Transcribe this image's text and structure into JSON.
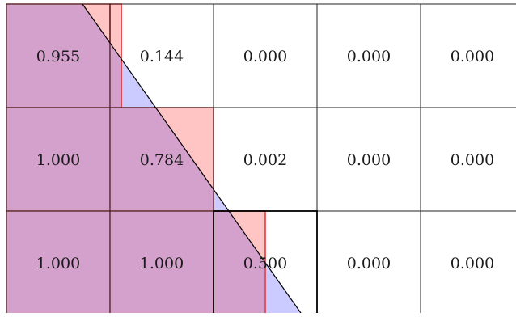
{
  "grid": {
    "rows": [
      [
        "0.955",
        "0.144",
        "0.000",
        "0.000",
        "0.000"
      ],
      [
        "1.000",
        "0.784",
        "0.002",
        "0.000",
        "0.000"
      ],
      [
        "1.000",
        "1.000",
        "0.500",
        "0.000",
        "0.000"
      ]
    ]
  },
  "colors": {
    "red_fill": "#ffb0b0",
    "red_stroke": "#e03030",
    "blue_fill": "#a8a8ff",
    "overlap_fill": "#d4a0cc",
    "grid_line": "#222222",
    "background": "#ffffff"
  },
  "overlay": {
    "red_fill_fraction": [
      [
        1.0,
        0.11,
        0.0,
        0.0,
        0.0
      ],
      [
        1.0,
        1.0,
        0.0,
        0.0,
        0.0
      ],
      [
        1.0,
        1.0,
        0.5,
        0.0,
        0.0
      ]
    ]
  }
}
